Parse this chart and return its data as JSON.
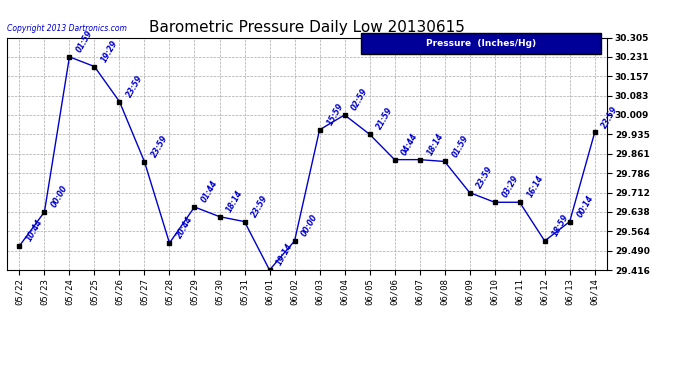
{
  "title": "Barometric Pressure Daily Low 20130615",
  "copyright": "Copyright 2013 Dartronics.com",
  "legend_label": "Pressure  (Inches/Hg)",
  "xlabels": [
    "05/22",
    "05/23",
    "05/24",
    "05/25",
    "05/26",
    "05/27",
    "05/28",
    "05/29",
    "05/30",
    "05/31",
    "06/01",
    "06/02",
    "06/03",
    "06/04",
    "06/05",
    "06/06",
    "06/07",
    "06/08",
    "06/09",
    "06/10",
    "06/11",
    "06/12",
    "06/13",
    "06/14"
  ],
  "y_values": [
    29.508,
    29.638,
    30.231,
    30.194,
    30.06,
    29.83,
    29.519,
    29.657,
    29.62,
    29.601,
    29.416,
    29.527,
    29.952,
    30.009,
    29.935,
    29.838,
    29.838,
    29.831,
    29.712,
    29.675,
    29.675,
    29.527,
    29.601,
    29.942
  ],
  "time_labels": [
    "10:44",
    "00:00",
    "01:59",
    "19:29",
    "23:59",
    "23:59",
    "20:44",
    "01:44",
    "18:14",
    "23:59",
    "19:14",
    "00:00",
    "15:59",
    "02:59",
    "21:59",
    "04:44",
    "18:14",
    "01:59",
    "23:59",
    "03:29",
    "16:14",
    "18:59",
    "00:14",
    "23:59"
  ],
  "ylim_min": 29.416,
  "ylim_max": 30.305,
  "ytick_values": [
    29.416,
    29.49,
    29.564,
    29.638,
    29.712,
    29.786,
    29.861,
    29.935,
    30.009,
    30.083,
    30.157,
    30.231,
    30.305
  ],
  "line_color": "#0000cc",
  "marker_color": "#000000",
  "bg_color": "#ffffff",
  "grid_color": "#aaaaaa",
  "title_fontsize": 11,
  "annotation_fontsize": 5.5,
  "tick_fontsize": 6.5,
  "copyright_fontsize": 5.5,
  "legend_bg": "#000099",
  "legend_fg": "#ffffff",
  "legend_fontsize": 6.5
}
